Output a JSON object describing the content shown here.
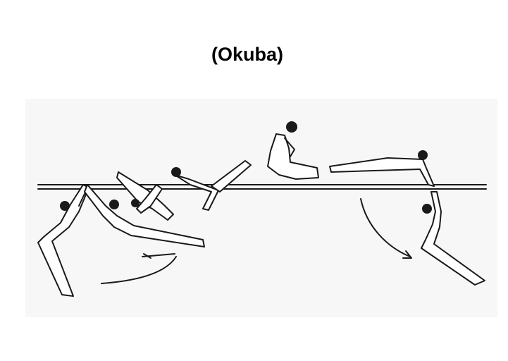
{
  "title": "(Okuba)",
  "colors": {
    "background": "#ffffff",
    "panel": "#f7f7f7",
    "ink": "#1a1a1a"
  }
}
